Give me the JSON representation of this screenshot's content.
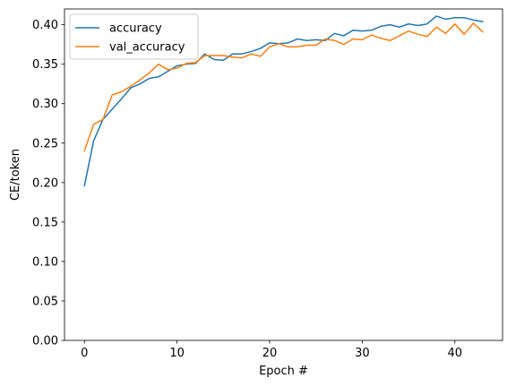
{
  "chart_data": {
    "type": "line",
    "xlabel": "Epoch #",
    "ylabel": "CE/token",
    "xlim": [
      -2.15,
      45.15
    ],
    "ylim": [
      0.0,
      0.42
    ],
    "x_ticks": [
      0,
      10,
      20,
      30,
      40
    ],
    "y_ticks": [
      0.0,
      0.05,
      0.1,
      0.15,
      0.2,
      0.25,
      0.3,
      0.35,
      0.4
    ],
    "grid": false,
    "legend_position": "top-left",
    "x": [
      0,
      1,
      2,
      3,
      4,
      5,
      6,
      7,
      8,
      9,
      10,
      11,
      12,
      13,
      14,
      15,
      16,
      17,
      18,
      19,
      20,
      21,
      22,
      23,
      24,
      25,
      26,
      27,
      28,
      29,
      30,
      31,
      32,
      33,
      34,
      35,
      36,
      37,
      38,
      39,
      40,
      41,
      42,
      43
    ],
    "series": [
      {
        "name": "accuracy",
        "color": "#1f77b4",
        "values": [
          0.196,
          0.253,
          0.28,
          0.293,
          0.306,
          0.32,
          0.325,
          0.332,
          0.334,
          0.341,
          0.348,
          0.35,
          0.351,
          0.363,
          0.356,
          0.355,
          0.363,
          0.363,
          0.366,
          0.37,
          0.377,
          0.376,
          0.377,
          0.382,
          0.38,
          0.381,
          0.38,
          0.389,
          0.386,
          0.393,
          0.392,
          0.393,
          0.398,
          0.4,
          0.397,
          0.401,
          0.399,
          0.401,
          0.411,
          0.407,
          0.409,
          0.409,
          0.406,
          0.404
        ]
      },
      {
        "name": "val_accuracy",
        "color": "#ff7f0e",
        "values": [
          0.24,
          0.274,
          0.28,
          0.311,
          0.315,
          0.322,
          0.33,
          0.339,
          0.35,
          0.343,
          0.345,
          0.351,
          0.352,
          0.361,
          0.361,
          0.361,
          0.359,
          0.358,
          0.363,
          0.36,
          0.372,
          0.376,
          0.372,
          0.372,
          0.374,
          0.374,
          0.382,
          0.38,
          0.375,
          0.382,
          0.381,
          0.387,
          0.383,
          0.38,
          0.386,
          0.392,
          0.388,
          0.385,
          0.397,
          0.389,
          0.401,
          0.388,
          0.402,
          0.391
        ]
      }
    ]
  }
}
